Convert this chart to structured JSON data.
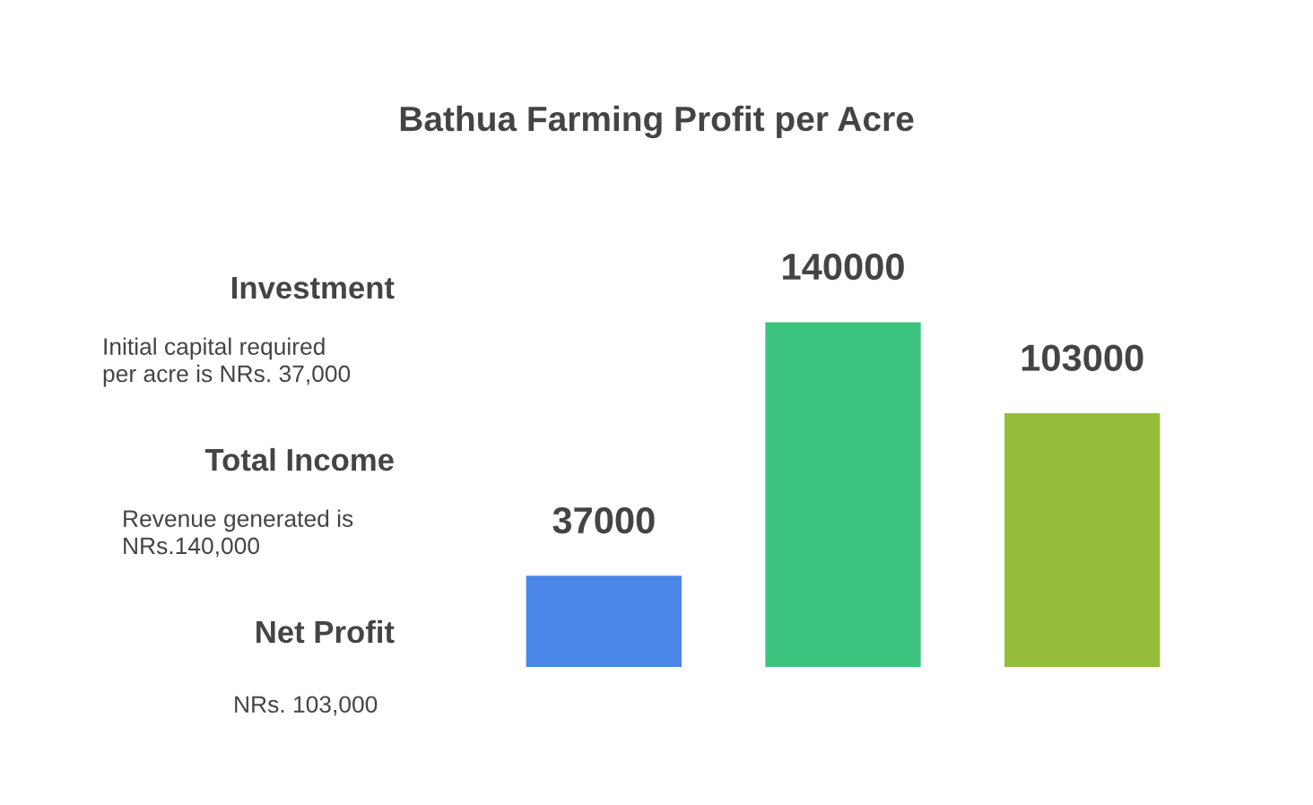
{
  "chart_data": {
    "type": "bar",
    "title": "Bathua Farming Profit per Acre",
    "categories": [
      null,
      null,
      null
    ],
    "values": [
      37000,
      140000,
      103000
    ],
    "colors": [
      "#4a86e8",
      "#3cc47e",
      "#94bd3a"
    ],
    "data_labels": true,
    "annotations": [
      "Investment",
      "Initial capital required\nper acre is NRs. 37,000",
      "Total Income",
      "Revenue generated is\nNRs.140,000",
      "Net Profit",
      "NRs. 103,000"
    ]
  }
}
